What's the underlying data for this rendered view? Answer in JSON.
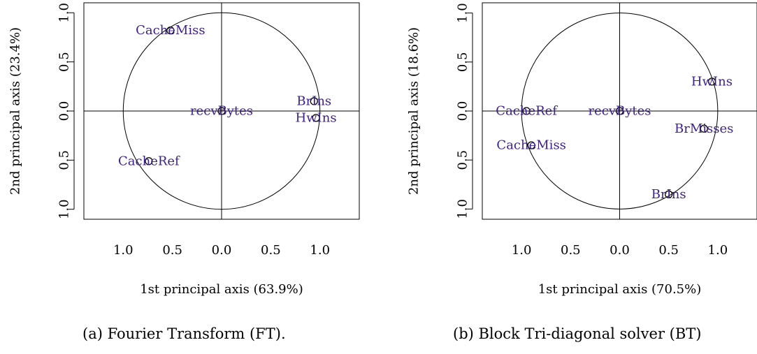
{
  "chart_data": [
    {
      "type": "scatter",
      "subtype": "pca-correlation-circle",
      "caption": "(a) Fourier Transform (FT).",
      "xlabel": "1st principal axis (63.9%)",
      "ylabel": "2nd principal axis (23.4%)",
      "xlim": [
        -1.4,
        1.4
      ],
      "ylim": [
        -1.1,
        1.1
      ],
      "xticks": [
        -1.0,
        -0.5,
        0.0,
        0.5,
        1.0
      ],
      "xtick_labels": [
        "1.0",
        "0.5",
        "0.0",
        "0.5",
        "1.0"
      ],
      "yticks": [
        -1.0,
        -0.5,
        0.0,
        0.5,
        1.0
      ],
      "ytick_labels": [
        "1.0",
        "0.5",
        "0.0",
        "0.5",
        "1.0"
      ],
      "unit_circle": true,
      "color_label": "#3b1f8c",
      "points": [
        {
          "label": "CacheMiss",
          "x": -0.52,
          "y": 0.82
        },
        {
          "label": "BrIns",
          "x": 0.94,
          "y": 0.1
        },
        {
          "label": "HwIns",
          "x": 0.96,
          "y": -0.07
        },
        {
          "label": "recvBytes",
          "x": 0.0,
          "y": 0.0
        },
        {
          "label": "CacheRef",
          "x": -0.74,
          "y": -0.51
        }
      ]
    },
    {
      "type": "scatter",
      "subtype": "pca-correlation-circle",
      "caption": "(b) Block Tri-diagonal solver (BT)",
      "xlabel": "1st principal axis (70.5%)",
      "ylabel": "2nd principal axis (18.6%)",
      "xlim": [
        -1.4,
        1.4
      ],
      "ylim": [
        -1.1,
        1.1
      ],
      "xticks": [
        -1.0,
        -0.5,
        0.0,
        0.5,
        1.0
      ],
      "xtick_labels": [
        "1.0",
        "0.5",
        "0.0",
        "0.5",
        "1.0"
      ],
      "yticks": [
        -1.0,
        -0.5,
        0.0,
        0.5,
        1.0
      ],
      "ytick_labels": [
        "1.0",
        "0.5",
        "0.0",
        "0.5",
        "1.0"
      ],
      "unit_circle": true,
      "color_label": "#3b1f8c",
      "points": [
        {
          "label": "HwIns",
          "x": 0.94,
          "y": 0.3
        },
        {
          "label": "CacheRef",
          "x": -0.95,
          "y": 0.0
        },
        {
          "label": "recvBytes",
          "x": 0.0,
          "y": 0.0
        },
        {
          "label": "BrMisses",
          "x": 0.86,
          "y": -0.18
        },
        {
          "label": "CacheMiss",
          "x": -0.9,
          "y": -0.35
        },
        {
          "label": "BrIns",
          "x": 0.5,
          "y": -0.85
        }
      ]
    }
  ]
}
